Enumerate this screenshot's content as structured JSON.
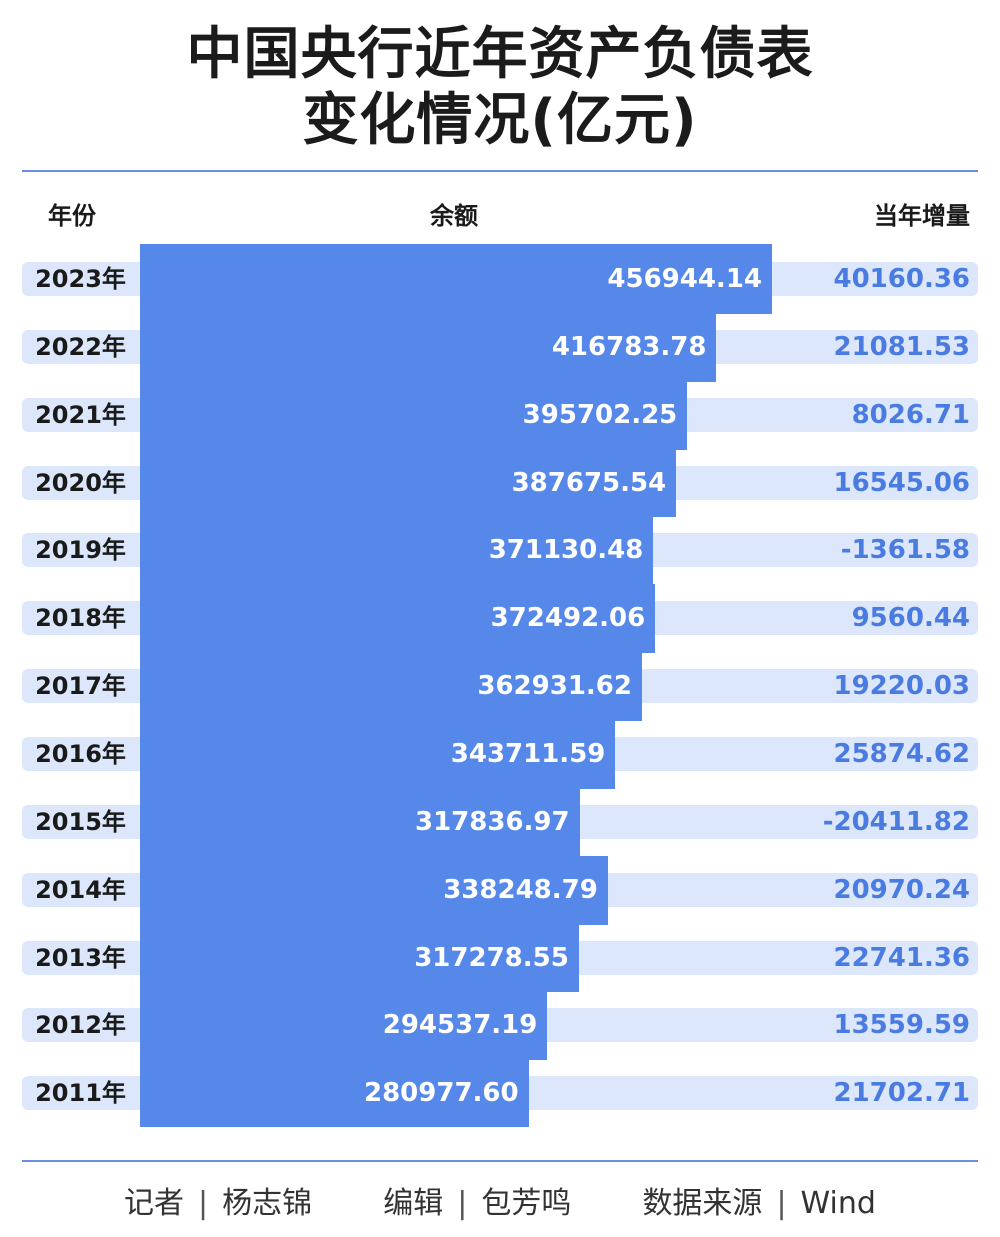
{
  "chart_data": {
    "type": "bar",
    "title_line1": "中国央行近年资产负债表",
    "title_line2": "变化情况(亿元)",
    "column_headers": {
      "year": "年份",
      "balance": "余额",
      "increase": "当年增量"
    },
    "categories": [
      "2023年",
      "2022年",
      "2021年",
      "2020年",
      "2019年",
      "2018年",
      "2017年",
      "2016年",
      "2015年",
      "2014年",
      "2013年",
      "2012年",
      "2011年"
    ],
    "series": [
      {
        "values": [
          456944.14,
          416783.78,
          395702.25,
          387675.54,
          371130.48,
          372492.06,
          362931.62,
          343711.59,
          317836.97,
          338248.79,
          317278.55,
          294537.19,
          280977.6
        ]
      },
      {
        "values": [
          40160.36,
          21081.53,
          8026.71,
          16545.06,
          -1361.58,
          9560.44,
          19220.03,
          25874.62,
          -20411.82,
          20970.24,
          22741.36,
          13559.59,
          21702.71
        ]
      }
    ],
    "balance_labels": [
      "456944.14",
      "416783.78",
      "395702.25",
      "387675.54",
      "371130.48",
      "372492.06",
      "362931.62",
      "343711.59",
      "317836.97",
      "338248.79",
      "317278.55",
      "294537.19",
      "280977.60"
    ],
    "increase_labels": [
      "40160.36",
      "21081.53",
      "8026.71",
      "16545.06",
      "-1361.58",
      "9560.44",
      "19220.03",
      "25874.62",
      "-20411.82",
      "20970.24",
      "22741.36",
      "13559.59",
      "21702.71"
    ],
    "colors": {
      "bar": "#5688ea",
      "row_background": "#dce7fb",
      "increase_text": "#4a7be0"
    }
  },
  "footer": {
    "reporter_label": "记者",
    "reporter": "杨志锦",
    "editor_label": "编辑",
    "editor": "包芳鸣",
    "source_label": "数据来源",
    "source": "Wind",
    "separator": "|"
  }
}
